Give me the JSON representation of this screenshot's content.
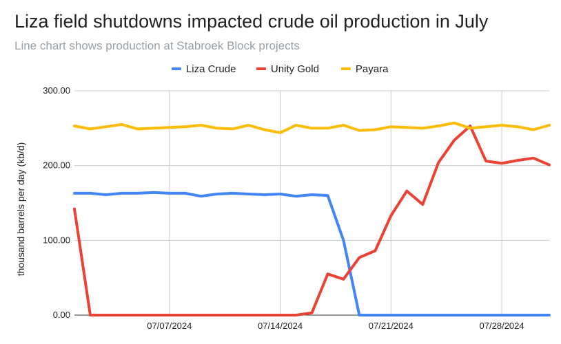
{
  "title": "Liza field shutdowns impacted crude oil production in July",
  "subtitle": "Line chart shows production at Stabroek Block projects",
  "colors": {
    "liza": "#4285f4",
    "unity": "#ea4335",
    "payara": "#fbbc04",
    "grid": "#cccccc",
    "axis": "#333333"
  },
  "chart_data": {
    "type": "line",
    "ylabel": "thousand barrels per day (kb/d)",
    "ylim": [
      0,
      300
    ],
    "yticks": [
      0,
      100,
      200,
      300
    ],
    "ytick_labels": [
      "0.00",
      "100.00",
      "200.00",
      "300.00"
    ],
    "grid": true,
    "legend_position": "top",
    "x_start": "2024-07-01",
    "x_end": "2024-07-31",
    "xticks": [
      "2024-07-07",
      "2024-07-14",
      "2024-07-21",
      "2024-07-28"
    ],
    "xtick_labels": [
      "07/07/2024",
      "07/14/2024",
      "07/21/2024",
      "07/28/2024"
    ],
    "x": [
      "2024-07-01",
      "2024-07-02",
      "2024-07-03",
      "2024-07-04",
      "2024-07-05",
      "2024-07-06",
      "2024-07-07",
      "2024-07-08",
      "2024-07-09",
      "2024-07-10",
      "2024-07-11",
      "2024-07-12",
      "2024-07-13",
      "2024-07-14",
      "2024-07-15",
      "2024-07-16",
      "2024-07-17",
      "2024-07-18",
      "2024-07-19",
      "2024-07-20",
      "2024-07-21",
      "2024-07-22",
      "2024-07-23",
      "2024-07-24",
      "2024-07-25",
      "2024-07-26",
      "2024-07-27",
      "2024-07-28",
      "2024-07-29",
      "2024-07-30",
      "2024-07-31"
    ],
    "series": [
      {
        "name": "Liza Crude",
        "color": "#4285f4",
        "values": [
          163,
          163,
          161,
          163,
          163,
          164,
          163,
          163,
          159,
          162,
          163,
          162,
          161,
          162,
          159,
          161,
          160,
          100,
          0,
          0,
          0,
          0,
          0,
          0,
          0,
          0,
          0,
          0,
          0,
          0,
          0
        ]
      },
      {
        "name": "Unity Gold",
        "color": "#ea4335",
        "values": [
          142,
          0,
          0,
          0,
          0,
          0,
          0,
          0,
          0,
          0,
          0,
          0,
          0,
          0,
          0,
          3,
          55,
          48,
          77,
          86,
          133,
          166,
          148,
          204,
          234,
          253,
          206,
          203,
          207,
          210,
          201
        ]
      },
      {
        "name": "Payara",
        "color": "#fbbc04",
        "values": [
          253,
          249,
          252,
          255,
          249,
          250,
          251,
          252,
          254,
          250,
          249,
          254,
          248,
          244,
          254,
          250,
          250,
          254,
          247,
          248,
          252,
          251,
          250,
          253,
          257,
          250,
          252,
          254,
          252,
          248,
          254
        ]
      }
    ]
  }
}
